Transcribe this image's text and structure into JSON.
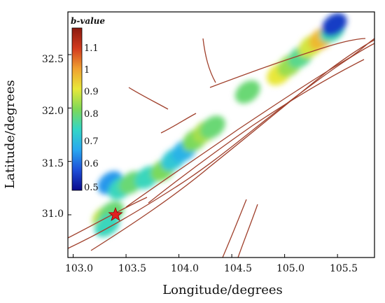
{
  "axes": {
    "xlabel": "Longitude/degrees",
    "ylabel": "Latitude/degrees",
    "xticks": [
      "103.0",
      "103.5",
      "104.0",
      "104.5",
      "105.0",
      "105.5"
    ],
    "yticks": [
      "31.0",
      "31.5",
      "32.0",
      "32.5"
    ],
    "xlim": [
      102.95,
      105.85
    ],
    "ylim": [
      30.6,
      32.9
    ]
  },
  "colorbar": {
    "title": "b-value",
    "ticks": [
      "1.1",
      "1",
      "0.9",
      "0.8",
      "0.7",
      "0.6",
      "0.5"
    ],
    "range": [
      0.45,
      1.2
    ],
    "colors": [
      "#0a0a8c",
      "#1e4fd8",
      "#2aa8f0",
      "#33d6c6",
      "#7ed957",
      "#e8e83a",
      "#f0a030",
      "#d23a1e",
      "#8b1a10"
    ]
  },
  "epicenter": {
    "lon": 103.4,
    "lat": 31.0,
    "symbol": "star",
    "color": "#e02020"
  },
  "colors": {
    "fault": "#a0402c",
    "frame": "#000000"
  },
  "chart_data": {
    "type": "heatmap",
    "xlabel": "Longitude/degrees",
    "ylabel": "Latitude/degrees",
    "xlim": [
      102.95,
      105.85
    ],
    "ylim": [
      30.6,
      32.9
    ],
    "colorbar_label": "b-value",
    "colorbar_range": [
      0.45,
      1.2
    ],
    "b_value_patches": [
      {
        "lon": 103.3,
        "lat": 30.98,
        "b": 0.88
      },
      {
        "lon": 103.36,
        "lat": 31.02,
        "b": 0.8
      },
      {
        "lon": 103.32,
        "lat": 30.9,
        "b": 0.74
      },
      {
        "lon": 103.35,
        "lat": 31.3,
        "b": 0.62
      },
      {
        "lon": 103.45,
        "lat": 31.25,
        "b": 0.74
      },
      {
        "lon": 103.55,
        "lat": 31.3,
        "b": 0.8
      },
      {
        "lon": 103.7,
        "lat": 31.35,
        "b": 0.74
      },
      {
        "lon": 103.85,
        "lat": 31.42,
        "b": 0.82
      },
      {
        "lon": 103.95,
        "lat": 31.52,
        "b": 0.7
      },
      {
        "lon": 104.05,
        "lat": 31.6,
        "b": 0.66
      },
      {
        "lon": 104.15,
        "lat": 31.7,
        "b": 0.82
      },
      {
        "lon": 104.25,
        "lat": 31.78,
        "b": 0.86
      },
      {
        "lon": 104.32,
        "lat": 31.82,
        "b": 0.8
      },
      {
        "lon": 104.65,
        "lat": 32.15,
        "b": 0.8
      },
      {
        "lon": 104.95,
        "lat": 32.32,
        "b": 0.92
      },
      {
        "lon": 105.05,
        "lat": 32.4,
        "b": 0.85
      },
      {
        "lon": 105.15,
        "lat": 32.48,
        "b": 0.78
      },
      {
        "lon": 105.25,
        "lat": 32.58,
        "b": 0.9
      },
      {
        "lon": 105.35,
        "lat": 32.65,
        "b": 0.98
      },
      {
        "lon": 105.45,
        "lat": 32.72,
        "b": 0.75
      },
      {
        "lon": 105.47,
        "lat": 32.78,
        "b": 0.52
      }
    ]
  }
}
